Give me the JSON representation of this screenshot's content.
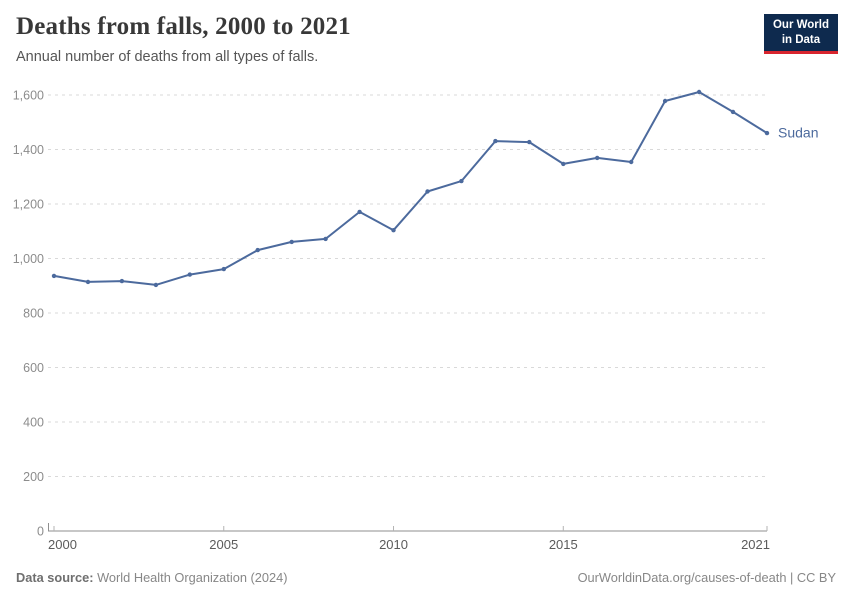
{
  "header": {
    "title": "Deaths from falls, 2000 to 2021",
    "subtitle": "Annual number of deaths from all types of falls."
  },
  "logo": {
    "line1": "Our World",
    "line2": "in Data"
  },
  "chart_data": {
    "type": "line",
    "title": "Deaths from falls, 2000 to 2021",
    "subtitle": "Annual number of deaths from all types of falls.",
    "x": [
      2000,
      2001,
      2002,
      2003,
      2004,
      2005,
      2006,
      2007,
      2008,
      2009,
      2010,
      2011,
      2012,
      2013,
      2014,
      2015,
      2016,
      2017,
      2018,
      2019,
      2020,
      2021
    ],
    "series": [
      {
        "name": "Sudan",
        "color": "#4c6a9d",
        "values": [
          936,
          914,
          917,
          903,
          941,
          961,
          1031,
          1061,
          1072,
          1171,
          1104,
          1246,
          1284,
          1431,
          1427,
          1347,
          1369,
          1354,
          1578,
          1611,
          1538,
          1460
        ]
      }
    ],
    "xlabel": "",
    "ylabel": "",
    "ylim": [
      0,
      1600
    ],
    "yticks": [
      0,
      200,
      400,
      600,
      800,
      1000,
      1200,
      1400,
      1600
    ],
    "xticks": [
      2000,
      2005,
      2010,
      2015,
      2021
    ],
    "grid": "horizontal-dashed",
    "legend_position": "line-end-label",
    "marker": "circle"
  },
  "footer": {
    "source_label": "Data source:",
    "source_value": " World Health Organization (2024)",
    "link": "OurWorldinData.org/causes-of-death",
    "license": " | CC BY"
  },
  "colors": {
    "line": "#4c6a9d",
    "gridline": "#d9d9d9",
    "axis_line": "#8f8f8f",
    "tick": "#b3b3b3",
    "y_label": "#8c8c8c",
    "x_label": "#5b5b5b",
    "entity_label": "#4c6a9d",
    "logo_bg": "#0e2a4e",
    "logo_accent": "#d8252e"
  }
}
